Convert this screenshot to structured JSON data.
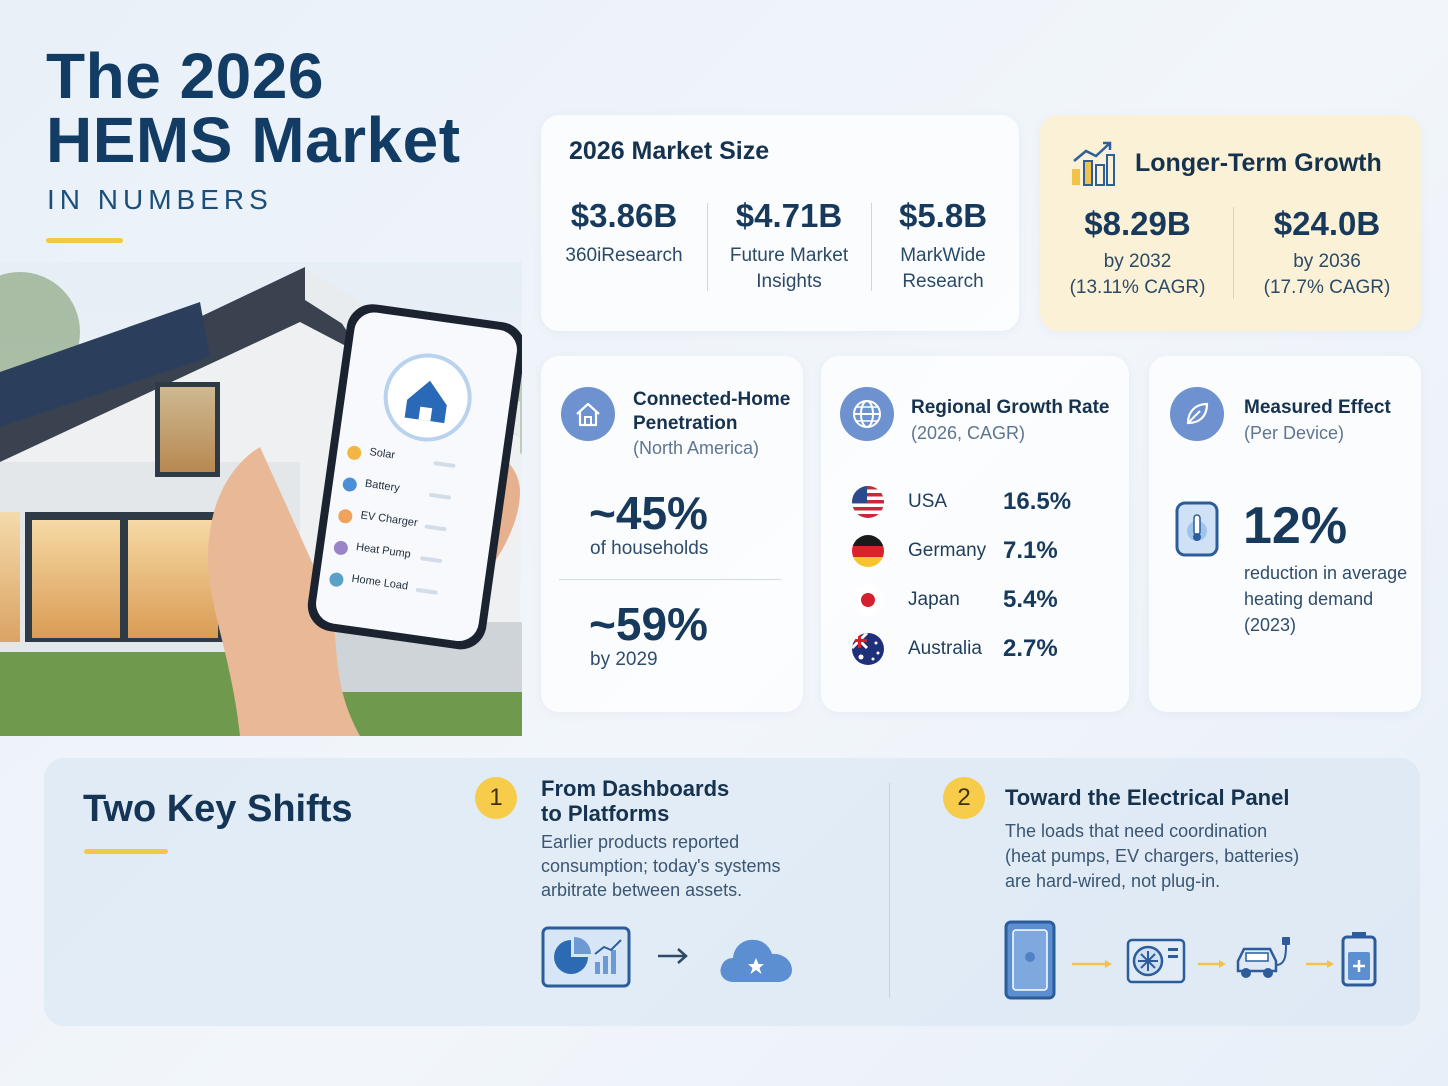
{
  "header": {
    "title_line1": "The 2026",
    "title_line2": "HEMS Market",
    "subtitle": "IN NUMBERS"
  },
  "phone_app": {
    "items": [
      "Solar",
      "Battery",
      "EV Charger",
      "Heat Pump",
      "Home Load"
    ]
  },
  "market_size": {
    "title": "2026 Market Size",
    "stats": [
      {
        "value": "$3.86B",
        "source_line1": "360iResearch",
        "source_line2": ""
      },
      {
        "value": "$4.71B",
        "source_line1": "Future Market",
        "source_line2": "Insights"
      },
      {
        "value": "$5.8B",
        "source_line1": "MarkWide",
        "source_line2": "Research"
      }
    ]
  },
  "long_term": {
    "title": "Longer-Term Growth",
    "stats": [
      {
        "value": "$8.29B",
        "line1": "by 2032",
        "line2": "(13.11% CAGR)"
      },
      {
        "value": "$24.0B",
        "line1": "by 2036",
        "line2": "(17.7% CAGR)"
      }
    ]
  },
  "penetration": {
    "title_line1": "Connected-Home",
    "title_line2": "Penetration",
    "note": "(North America)",
    "stat1": {
      "value": "~45%",
      "label": "of households"
    },
    "stat2": {
      "value": "~59%",
      "label": "by 2029"
    }
  },
  "regional": {
    "title": "Regional Growth Rate",
    "note": "(2026, CAGR)",
    "rows": [
      {
        "country": "USA",
        "rate": "16.5%"
      },
      {
        "country": "Germany",
        "rate": "7.1%"
      },
      {
        "country": "Japan",
        "rate": "5.4%"
      },
      {
        "country": "Australia",
        "rate": "2.7%"
      }
    ]
  },
  "effect": {
    "title": "Measured Effect",
    "note": "(Per Device)",
    "value": "12%",
    "label_line1": "reduction in average",
    "label_line2": "heating demand",
    "label_line3": "(2023)"
  },
  "shifts": {
    "title": "Two Key Shifts",
    "items": [
      {
        "number": "1",
        "title_line1": "From Dashboards",
        "title_line2": "to Platforms",
        "body_line1": "Earlier products reported",
        "body_line2": "consumption; today's systems",
        "body_line3": "arbitrate between assets."
      },
      {
        "number": "2",
        "title_line1": "Toward the Electrical Panel",
        "title_line2": "",
        "body_line1": "The loads that need coordination",
        "body_line2": "(heat pumps, EV chargers, batteries)",
        "body_line3": "are hard-wired, not plug-in."
      }
    ]
  },
  "icons": {
    "house": "house-icon",
    "globe": "globe-icon",
    "leaf": "leaf-icon",
    "growth_chart": "growth-chart-icon",
    "thermostat": "thermostat-icon",
    "dashboard": "dashboard-icon",
    "cloud": "cloud-icon",
    "arrow": "arrow-right-icon",
    "panel": "electrical-panel-icon",
    "heat_pump": "heat-pump-icon",
    "ev": "ev-car-icon",
    "battery": "battery-icon"
  },
  "colors": {
    "primary_text": "#123c63",
    "accent_yellow": "#f5c842",
    "icon_blue": "#6d92cf",
    "long_term_card": "#fbf1d6"
  }
}
